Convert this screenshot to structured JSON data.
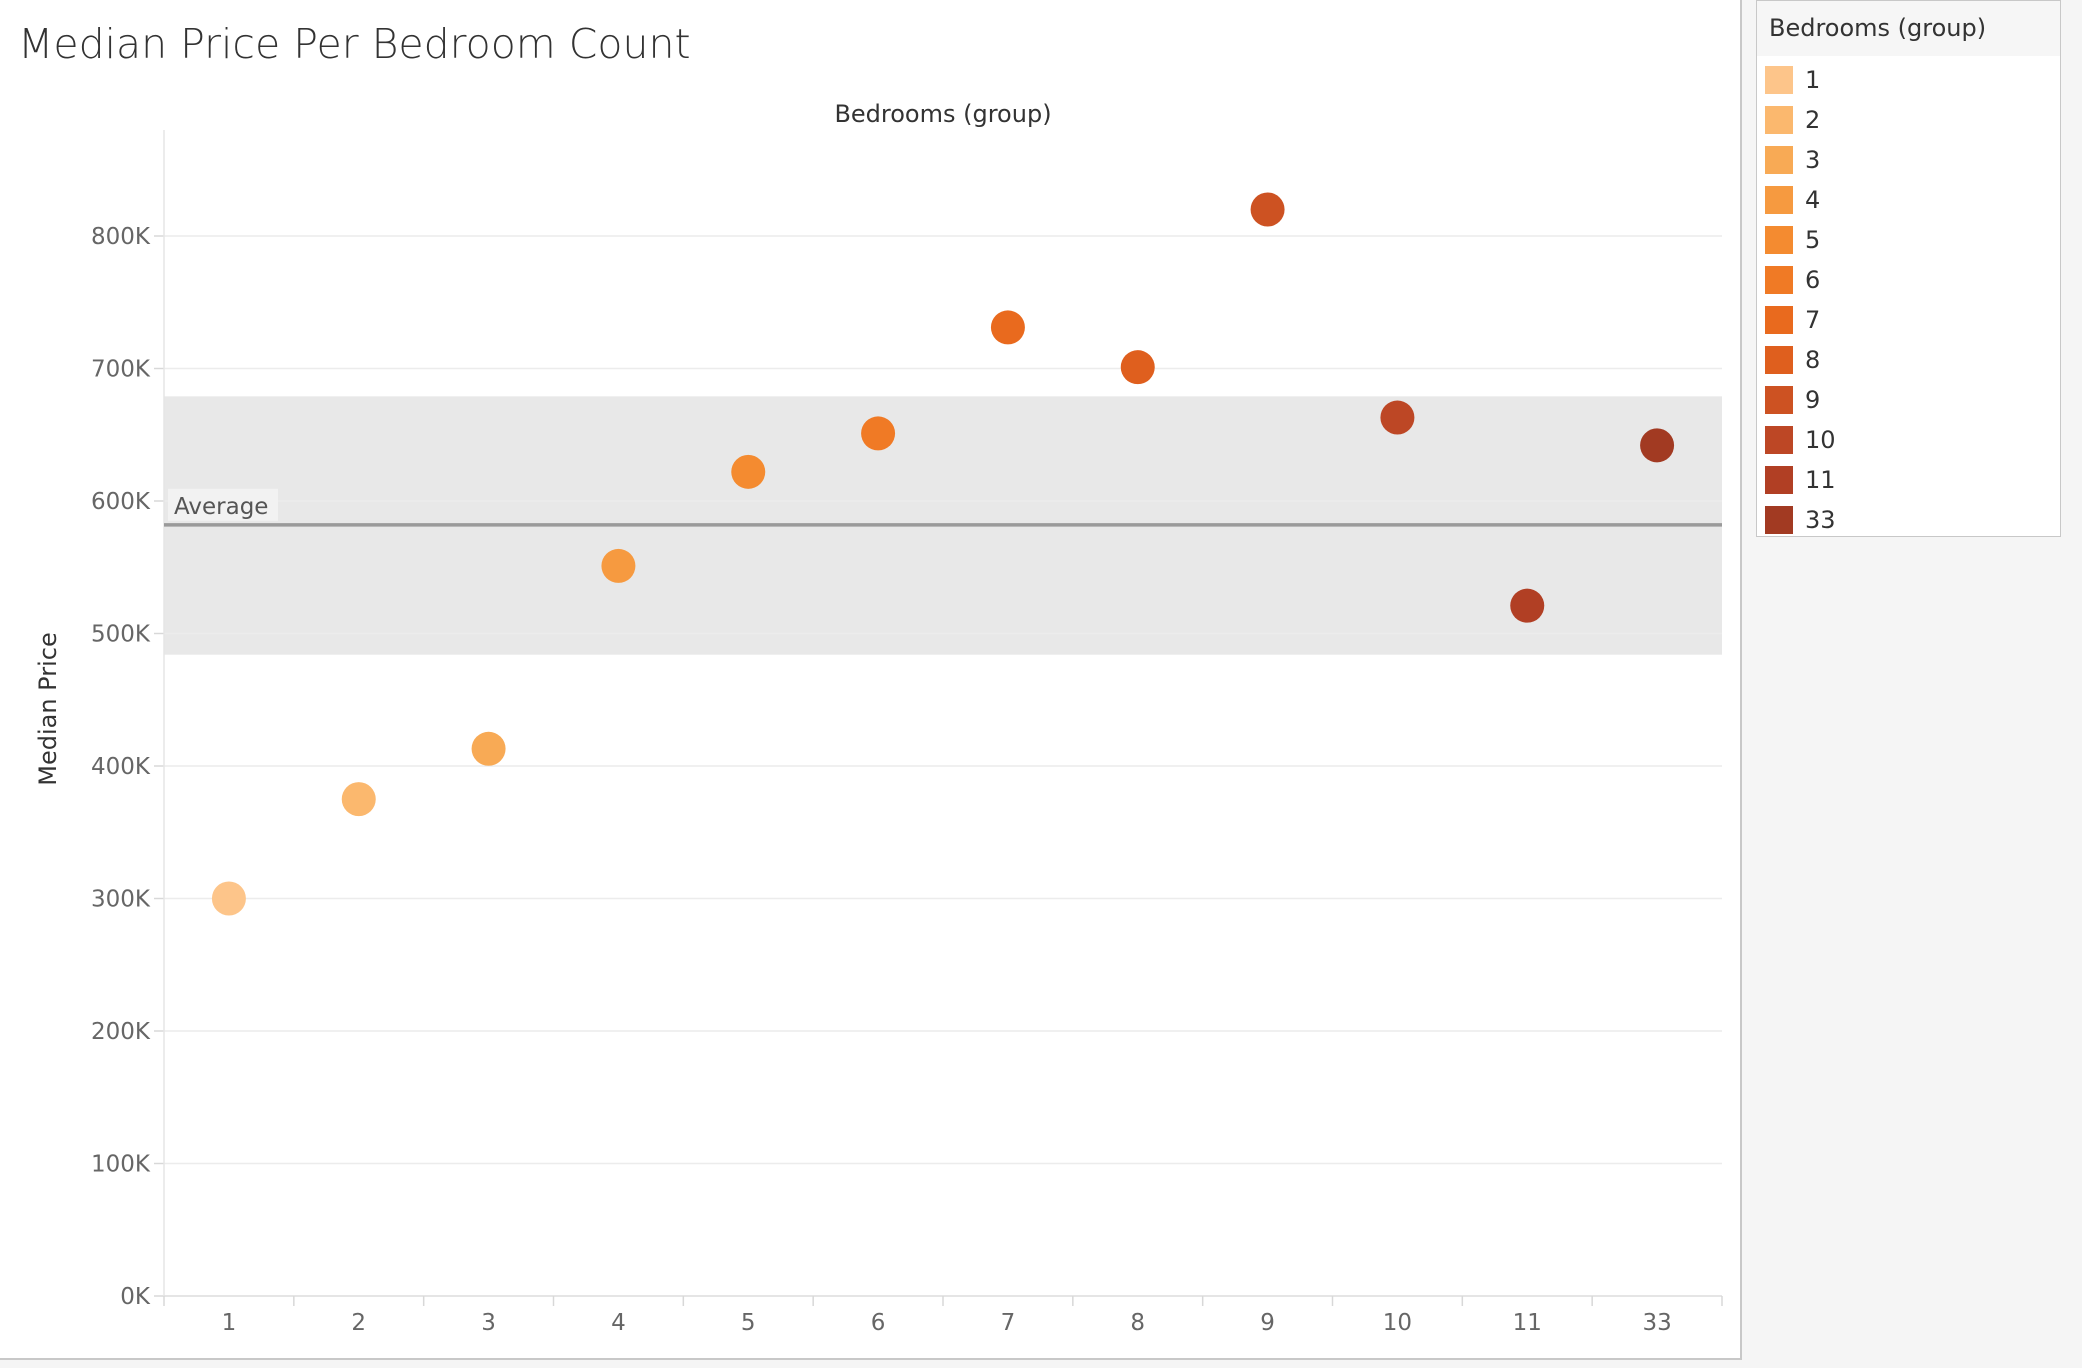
{
  "chart_data": {
    "type": "scatter",
    "title": "Median Price Per Bedroom Count",
    "top_label": "Bedrooms (group)",
    "ylabel": "Median Price",
    "categories": [
      "1",
      "2",
      "3",
      "4",
      "5",
      "6",
      "7",
      "8",
      "9",
      "10",
      "11",
      "33"
    ],
    "values": [
      300000,
      375000,
      413000,
      551000,
      622000,
      651000,
      731000,
      701000,
      820000,
      663000,
      521000,
      642000
    ],
    "ylim": [
      0,
      880000
    ],
    "y_ticks": [
      0,
      100000,
      200000,
      300000,
      400000,
      500000,
      600000,
      700000,
      800000
    ],
    "y_tick_labels": [
      "0K",
      "100K",
      "200K",
      "300K",
      "400K",
      "500K",
      "600K",
      "700K",
      "800K"
    ],
    "grid": true,
    "reference_line": {
      "label": "Average",
      "value": 582000,
      "band": [
        484000,
        679000
      ]
    },
    "colors": [
      "#fdc58a",
      "#fbb86e",
      "#f8aa55",
      "#f69a40",
      "#f48b30",
      "#f07a25",
      "#e96a1e",
      "#df5f1e",
      "#cd5222",
      "#bd4725",
      "#b13f24",
      "#a23a22"
    ],
    "legend": {
      "title": "Bedrooms (group)",
      "position": "right"
    }
  }
}
